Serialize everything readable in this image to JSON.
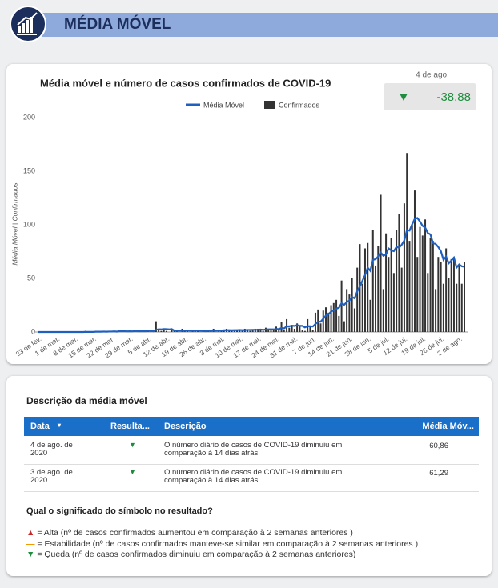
{
  "header": {
    "title": "MÉDIA MÓVEL"
  },
  "kpi": {
    "date": "4 de ago.",
    "value": "-38,88"
  },
  "chart_data": {
    "type": "bar",
    "title": "Média móvel e número de casos confirmados de COVID-19",
    "y_label": "Média Móvel | Confirmados",
    "categories": [
      "23 de fev.",
      null,
      null,
      null,
      null,
      null,
      null,
      "1 de mar.",
      null,
      null,
      null,
      null,
      null,
      null,
      "8 de mar.",
      null,
      null,
      null,
      null,
      null,
      null,
      "15 de mar.",
      null,
      null,
      null,
      null,
      null,
      null,
      "22 de mar.",
      null,
      null,
      null,
      null,
      null,
      null,
      "29 de mar.",
      null,
      null,
      null,
      null,
      null,
      null,
      "5 de abr.",
      null,
      null,
      null,
      null,
      null,
      null,
      "12 de abr.",
      null,
      null,
      null,
      null,
      null,
      null,
      "19 de abr.",
      null,
      null,
      null,
      null,
      null,
      null,
      "26 de abr.",
      null,
      null,
      null,
      null,
      null,
      null,
      "3 de mai.",
      null,
      null,
      null,
      null,
      null,
      null,
      "10 de mai.",
      null,
      null,
      null,
      null,
      null,
      null,
      "17 de mai.",
      null,
      null,
      null,
      null,
      null,
      null,
      "24 de mai.",
      null,
      null,
      null,
      null,
      null,
      null,
      "31 de mai.",
      null,
      null,
      null,
      null,
      null,
      null,
      "7 de jun.",
      null,
      null,
      null,
      null,
      null,
      null,
      "14 de jun.",
      null,
      null,
      null,
      null,
      null,
      null,
      "21 de jun.",
      null,
      null,
      null,
      null,
      null,
      null,
      "28 de jun.",
      null,
      null,
      null,
      null,
      null,
      null,
      "5 de jul.",
      null,
      null,
      null,
      null,
      null,
      null,
      "12 de jul.",
      null,
      null,
      null,
      null,
      null,
      null,
      "19 de jul.",
      null,
      null,
      null,
      null,
      null,
      null,
      "26 de jul.",
      null,
      null,
      null,
      null,
      null,
      null,
      "2 de ago.",
      null,
      null
    ],
    "series": [
      {
        "name": "Média Móvel",
        "type": "line",
        "color": "#1f5fbf",
        "values": [
          0,
          0,
          0,
          0,
          0,
          0,
          0,
          0,
          0,
          0,
          0,
          0,
          0,
          0,
          0,
          0,
          0,
          0,
          0.1,
          0.1,
          0.1,
          0.1,
          0.3,
          0.3,
          0.3,
          0.4,
          0.3,
          0.4,
          0.4,
          0.6,
          0.4,
          0.7,
          0.7,
          0.7,
          0.6,
          0.7,
          0.6,
          0.9,
          0.7,
          0.7,
          0.7,
          0.7,
          1,
          1.1,
          0.7,
          2.1,
          2.4,
          2.4,
          2.7,
          2.6,
          2.4,
          2.7,
          1.3,
          1.1,
          1.1,
          1.1,
          1.1,
          1.4,
          1.1,
          1.1,
          1.3,
          1.4,
          1,
          1,
          0.7,
          1,
          1,
          1.3,
          1.1,
          1.3,
          1.3,
          1.6,
          1.7,
          1.7,
          1.6,
          1.7,
          1.7,
          1.9,
          1.7,
          1.7,
          1.9,
          1.9,
          2,
          2,
          2.1,
          2.3,
          2,
          2.3,
          2.4,
          2.4,
          2.4,
          2.7,
          2.7,
          3.7,
          3.4,
          5.1,
          5.3,
          5.9,
          5.6,
          6.3,
          5.7,
          5.7,
          4.3,
          5.3,
          5.3,
          5.1,
          7.4,
          9.6,
          9.6,
          12.3,
          15.4,
          16.6,
          19,
          20.3,
          21.7,
          22.6,
          26.9,
          25.4,
          27.9,
          29.3,
          32.6,
          31.4,
          37.9,
          42.4,
          47.9,
          53.1,
          60,
          57.1,
          67.3,
          67.9,
          70.4,
          74.1,
          71.1,
          72.4,
          77.9,
          76.1,
          75.4,
          79.3,
          78.6,
          81.4,
          85.4,
          95,
          94.6,
          100.4,
          105.6,
          106.3,
          103.1,
          99,
          97.3,
          92.3,
          91,
          82.9,
          82.1,
          79.3,
          75.4,
          67.3,
          70.4,
          64.1,
          66.6,
          69.4,
          60.1,
          63,
          61.29,
          60.86
        ]
      },
      {
        "name": "Confirmados",
        "type": "bar",
        "color": "#333333",
        "values": [
          0,
          0,
          0,
          0,
          0,
          0,
          0,
          0,
          0,
          0,
          0,
          0,
          0,
          0,
          0,
          0,
          0,
          0,
          1,
          0,
          0,
          0,
          1,
          0,
          0,
          1,
          0,
          1,
          0,
          1,
          0,
          2,
          0,
          1,
          0,
          1,
          0,
          2,
          1,
          0,
          1,
          0,
          2,
          1,
          0,
          10,
          3,
          1,
          2,
          1,
          0,
          2,
          1,
          1,
          0,
          3,
          1,
          2,
          0,
          1,
          2,
          1,
          0,
          1,
          0,
          2,
          1,
          3,
          0,
          2,
          1,
          2,
          3,
          1,
          2,
          1,
          2,
          2,
          1,
          3,
          2,
          1,
          2,
          3,
          3,
          2,
          1,
          4,
          2,
          3,
          2,
          5,
          3,
          9,
          2,
          12,
          4,
          6,
          3,
          8,
          5,
          2,
          1,
          12,
          6,
          2,
          18,
          21,
          8,
          20,
          23,
          18,
          25,
          27,
          30,
          15,
          48,
          10,
          40,
          35,
          50,
          22,
          60,
          82,
          45,
          78,
          83,
          30,
          95,
          62,
          80,
          128,
          40,
          92,
          70,
          88,
          55,
          95,
          110,
          60,
          120,
          167,
          85,
          100,
          132,
          70,
          98,
          90,
          105,
          55,
          88,
          85,
          40,
          70,
          65,
          45,
          78,
          50,
          68,
          70,
          45,
          62,
          45,
          65
        ]
      }
    ],
    "ylim": [
      0,
      200
    ],
    "yticks": [
      0,
      50,
      100,
      150,
      200
    ],
    "grid": false
  },
  "table": {
    "title": "Descrição da média móvel",
    "columns": [
      "Data",
      "Resulta...",
      "Descrição",
      "Média Móv..."
    ],
    "rows": [
      {
        "date": "4 de ago. de 2020",
        "description": "O número diário de casos de COVID-19 diminuiu em comparação à 14 dias atrás",
        "value": "60,86"
      },
      {
        "date": "3 de ago. de 2020",
        "description": "O número diário de casos de COVID-19 diminuiu em comparação à 14 dias atrás",
        "value": "61,29"
      }
    ]
  },
  "legend": {
    "question": "Qual o significado do símbolo no resultado?",
    "items": [
      "= Alta (nº de casos confirmados aumentou em comparação à 2 semanas anteriores )",
      "= Estabilidade (nº de casos confirmados manteve-se similar em comparação à 2 semanas anteriores )",
      "= Queda (nº de casos confirmados diminuiu em comparação à 2 semanas anteriores)"
    ]
  }
}
